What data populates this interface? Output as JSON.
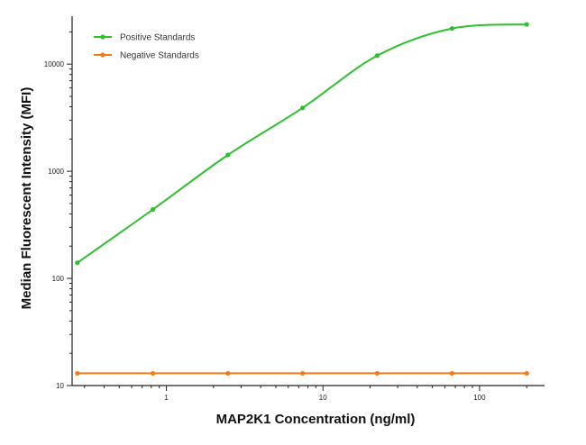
{
  "chart_data": {
    "type": "line",
    "title": "",
    "xlabel": "MAP2K1 Concentration (ng/ml)",
    "ylabel": "Median  Fluorescent Intensity  (MFI)",
    "xscale": "log",
    "yscale": "log",
    "xlim": [
      0.25,
      260
    ],
    "ylim": [
      10,
      28000
    ],
    "x_ticks": [
      1,
      10,
      100
    ],
    "x_tick_labels": [
      "1",
      "10",
      "100"
    ],
    "y_ticks": [
      10,
      100,
      1000,
      10000
    ],
    "y_tick_labels": [
      "10",
      "100",
      "1000",
      "10000"
    ],
    "grid": false,
    "legend_position": "top-left",
    "series": [
      {
        "name": "Positive Standards",
        "color": "#2fbf2f",
        "x": [
          0.27,
          0.82,
          2.47,
          7.41,
          22.2,
          66.7,
          200
        ],
        "y": [
          140,
          440,
          1420,
          3900,
          12000,
          21500,
          23500
        ]
      },
      {
        "name": "Negative Standards",
        "color": "#f07d1a",
        "x": [
          0.27,
          0.82,
          2.47,
          7.41,
          22.2,
          66.7,
          200
        ],
        "y": [
          13,
          13,
          13,
          13,
          13,
          13,
          13
        ]
      }
    ]
  }
}
